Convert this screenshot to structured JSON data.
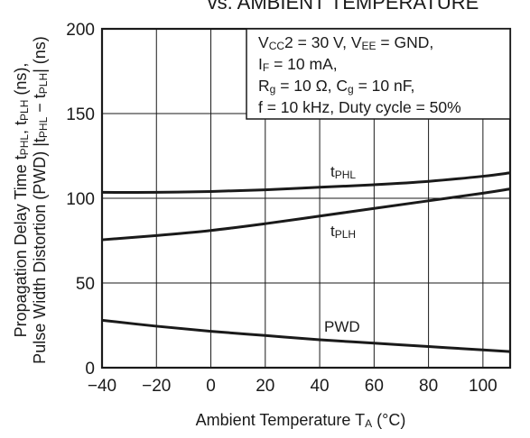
{
  "chart_data": {
    "type": "line",
    "title": "vs. AMBIENT TEMPERATURE",
    "xlabel": "Ambient Temperature T",
    "xlabel_sub": "A",
    "xlabel_unit": " (°C)",
    "ylabel_line1": {
      "a": "Propagation Delay Time t",
      "a_sub": "PHL",
      "b": ", t",
      "b_sub": "PLH",
      "c": " (ns),"
    },
    "ylabel_line2": {
      "a": "Pulse Width Distortion (PWD) |t",
      "a_sub": "PHL",
      "b": " − t",
      "b_sub": "PLH",
      "c": "| (ns)"
    },
    "xlim": [
      -40,
      110
    ],
    "ylim": [
      0,
      200
    ],
    "xticks": [
      -40,
      -20,
      0,
      20,
      40,
      60,
      80,
      100
    ],
    "xtick_labels": [
      "−40",
      "−20",
      "0",
      "20",
      "40",
      "60",
      "80",
      "100"
    ],
    "yticks": [
      0,
      50,
      100,
      150,
      200
    ],
    "ytick_labels": [
      "0",
      "50",
      "100",
      "150",
      "200"
    ],
    "grid": true,
    "conditions": {
      "line1": {
        "p1": "V",
        "s1": "CC",
        "p2": "2 = 30 V, V",
        "s2": "EE",
        "p3": " = GND,"
      },
      "line2": {
        "p1": "I",
        "s1": "F",
        "p2": " = 10 mA,"
      },
      "line3": {
        "p1": "R",
        "s1": "g",
        "p2": " = 10 Ω, C",
        "s2": "g",
        "p3": " = 10 nF,"
      },
      "line4": "f = 10 kHz, Duty cycle = 50%"
    },
    "series": [
      {
        "name": "t",
        "name_sub": "PHL",
        "x": [
          -40,
          -20,
          0,
          20,
          40,
          60,
          80,
          100,
          110
        ],
        "y": [
          103.5,
          103.5,
          104,
          105,
          106.5,
          108,
          110,
          113,
          115
        ]
      },
      {
        "name": "t",
        "name_sub": "PLH",
        "x": [
          -40,
          -20,
          0,
          20,
          40,
          60,
          80,
          100,
          110
        ],
        "y": [
          75.5,
          78,
          81,
          85,
          89.5,
          94,
          98.5,
          103,
          105.5
        ]
      },
      {
        "name": "PWD",
        "name_sub": "",
        "x": [
          -40,
          -20,
          0,
          20,
          40,
          60,
          80,
          100,
          110
        ],
        "y": [
          28,
          24.5,
          21.5,
          19,
          16.5,
          14.5,
          12.5,
          10.5,
          9.5
        ]
      }
    ],
    "colors": {
      "line": "#1a1a1a",
      "grid": "#1a1a1a",
      "background": "#ffffff"
    }
  }
}
